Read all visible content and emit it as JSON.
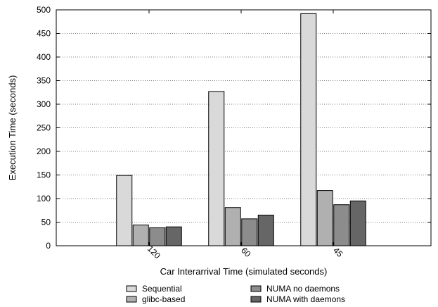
{
  "chart_data": {
    "type": "bar",
    "title": "",
    "xlabel": "Car Interarrival Time (simulated seconds)",
    "ylabel": "Execution Time (seconds)",
    "ylim": [
      0,
      500
    ],
    "yticks": [
      0,
      50,
      100,
      150,
      200,
      250,
      300,
      350,
      400,
      450,
      500
    ],
    "grid": "horizontal dotted",
    "legend_placement": "bottom",
    "categories": [
      "120",
      "60",
      "45"
    ],
    "series": [
      {
        "name": "Sequential",
        "color": "#d9d9d9",
        "values": [
          149,
          327,
          492
        ]
      },
      {
        "name": "glibc-based",
        "color": "#b0b0b0",
        "values": [
          44,
          81,
          117
        ]
      },
      {
        "name": "NUMA no daemons",
        "color": "#8c8c8c",
        "values": [
          38,
          57,
          87
        ]
      },
      {
        "name": "NUMA with daemons",
        "color": "#666666",
        "values": [
          40,
          65,
          95
        ]
      }
    ]
  }
}
